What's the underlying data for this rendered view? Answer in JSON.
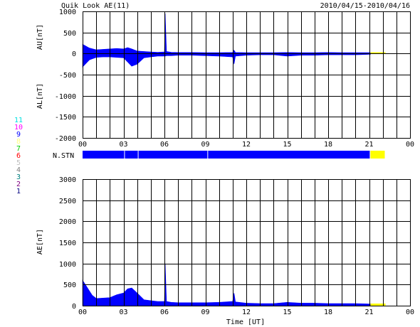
{
  "header": {
    "title": "Quik Look AE(11)",
    "date_range": "2010/04/15-2010/04/16"
  },
  "colors": {
    "fill": "#0000ff",
    "provisional": "#ffff00",
    "grid": "#000000",
    "background": "#ffffff"
  },
  "legend": {
    "entries": [
      {
        "label": "11",
        "color": "#00e0e0"
      },
      {
        "label": "10",
        "color": "#ff00ff"
      },
      {
        "label": "9",
        "color": "#0000ff"
      },
      {
        "label": "8",
        "color": "#ffff80"
      },
      {
        "label": "7",
        "color": "#00cc00"
      },
      {
        "label": "6",
        "color": "#ff0000"
      },
      {
        "label": "5",
        "color": "#c0c0c0"
      },
      {
        "label": "4",
        "color": "#808080"
      },
      {
        "label": "3",
        "color": "#008080"
      },
      {
        "label": "2",
        "color": "#800080"
      },
      {
        "label": "1",
        "color": "#000080"
      }
    ]
  },
  "chart_data": [
    {
      "type": "area",
      "title": "",
      "xlabel": "",
      "ylabel_upper": "AU[nT]",
      "ylabel_lower": "AL[nT]",
      "xlim": [
        0,
        24
      ],
      "ylim": [
        -2000,
        1000
      ],
      "yticks": [
        1000,
        500,
        0,
        -500,
        -1000,
        -1500,
        -2000
      ],
      "xtick_labels": [
        "00",
        "03",
        "06",
        "09",
        "12",
        "15",
        "18",
        "21",
        "00"
      ],
      "series": [
        {
          "x": [
            0,
            0.5,
            1,
            1.5,
            2,
            2.5,
            3,
            3.3,
            3.6,
            4,
            4.5,
            5,
            5.5,
            6,
            6.05,
            6.15,
            6.5,
            7,
            8,
            9,
            10,
            11,
            11.1,
            11.2,
            12,
            13,
            14,
            15,
            16,
            17,
            18,
            19,
            20,
            21,
            21.1
          ],
          "upper": [
            220,
            130,
            90,
            100,
            110,
            120,
            110,
            140,
            110,
            60,
            50,
            40,
            30,
            40,
            950,
            50,
            30,
            25,
            25,
            20,
            20,
            25,
            80,
            25,
            20,
            20,
            20,
            25,
            20,
            20,
            25,
            20,
            20,
            20,
            20
          ],
          "lower": [
            -320,
            -150,
            -90,
            -80,
            -80,
            -90,
            -100,
            -200,
            -300,
            -250,
            -100,
            -80,
            -60,
            -60,
            -60,
            -50,
            -50,
            -40,
            -40,
            -50,
            -60,
            -80,
            -250,
            -60,
            -40,
            -30,
            -30,
            -60,
            -40,
            -40,
            -30,
            -30,
            -30,
            -20,
            -20
          ]
        }
      ],
      "provisional": {
        "x_start": 21.1,
        "x_end": 22.2,
        "upper": 30,
        "lower": -5
      }
    },
    {
      "type": "table",
      "label": "N.STN",
      "segments": [
        {
          "x_start": 0,
          "x_end": 3.1,
          "color": "#0000ff"
        },
        {
          "x_start": 3.1,
          "x_end": 4.1,
          "color": "#0000ff"
        },
        {
          "x_start": 4.1,
          "x_end": 9.2,
          "color": "#0000ff"
        },
        {
          "x_start": 9.2,
          "x_end": 21.1,
          "color": "#0000ff"
        },
        {
          "x_start": 21.1,
          "x_end": 22.2,
          "color": "#ffff00"
        }
      ]
    },
    {
      "type": "area",
      "title": "",
      "xlabel": "Time [UT]",
      "ylabel": "AE[nT]",
      "xlim": [
        0,
        24
      ],
      "ylim": [
        0,
        3000
      ],
      "yticks": [
        3000,
        2500,
        2000,
        1500,
        1000,
        500,
        0
      ],
      "xtick_labels": [
        "00",
        "03",
        "06",
        "09",
        "12",
        "15",
        "18",
        "21",
        "00"
      ],
      "series": [
        {
          "x": [
            0,
            0.3,
            0.7,
            1,
            1.5,
            2,
            2.5,
            3,
            3.3,
            3.6,
            4,
            4.5,
            5,
            5.5,
            6,
            6.05,
            6.15,
            6.5,
            7,
            8,
            9,
            10,
            11,
            11.1,
            11.2,
            12,
            13,
            14,
            15,
            16,
            17,
            18,
            19,
            20,
            21,
            21.1
          ],
          "values": [
            600,
            450,
            250,
            170,
            180,
            190,
            260,
            300,
            400,
            420,
            300,
            140,
            120,
            100,
            100,
            1000,
            100,
            80,
            70,
            70,
            70,
            80,
            100,
            300,
            90,
            60,
            50,
            50,
            80,
            60,
            60,
            50,
            50,
            50,
            40,
            40
          ]
        }
      ],
      "provisional": {
        "x_start": 21.1,
        "x_end": 22.2,
        "value": 50
      }
    }
  ]
}
